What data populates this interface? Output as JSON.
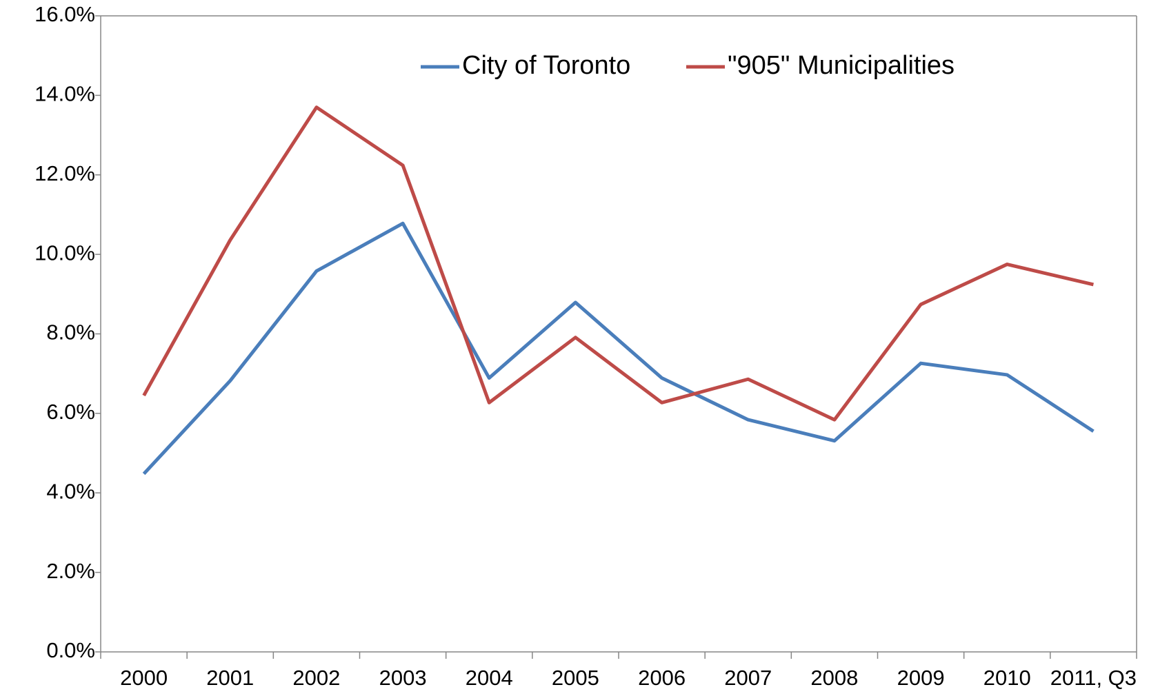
{
  "chart_data": {
    "type": "line",
    "categories": [
      "2000",
      "2001",
      "2002",
      "2003",
      "2004",
      "2005",
      "2006",
      "2007",
      "2008",
      "2009",
      "2010",
      "2011, Q3"
    ],
    "series": [
      {
        "name": "City of Toronto",
        "color": "#4a7ebb",
        "values": [
          4.48,
          6.82,
          9.58,
          10.78,
          6.89,
          8.79,
          6.89,
          5.84,
          5.31,
          7.26,
          6.97,
          5.55
        ]
      },
      {
        "name": "\"905\" Municipalities",
        "color": "#be4b48",
        "values": [
          6.45,
          10.36,
          13.7,
          12.24,
          6.27,
          7.91,
          6.27,
          6.86,
          5.84,
          8.74,
          9.75,
          9.24
        ]
      }
    ],
    "ylim": [
      0,
      16
    ],
    "yticks": [
      {
        "value": 0,
        "label": "0.0%"
      },
      {
        "value": 2,
        "label": "2.0%"
      },
      {
        "value": 4,
        "label": "4.0%"
      },
      {
        "value": 6,
        "label": "6.0%"
      },
      {
        "value": 8,
        "label": "8.0%"
      },
      {
        "value": 10,
        "label": "10.0%"
      },
      {
        "value": 12,
        "label": "12.0%"
      },
      {
        "value": 14,
        "label": "14.0%"
      },
      {
        "value": 16,
        "label": "16.0%"
      }
    ],
    "grid": false,
    "legend": "top"
  }
}
